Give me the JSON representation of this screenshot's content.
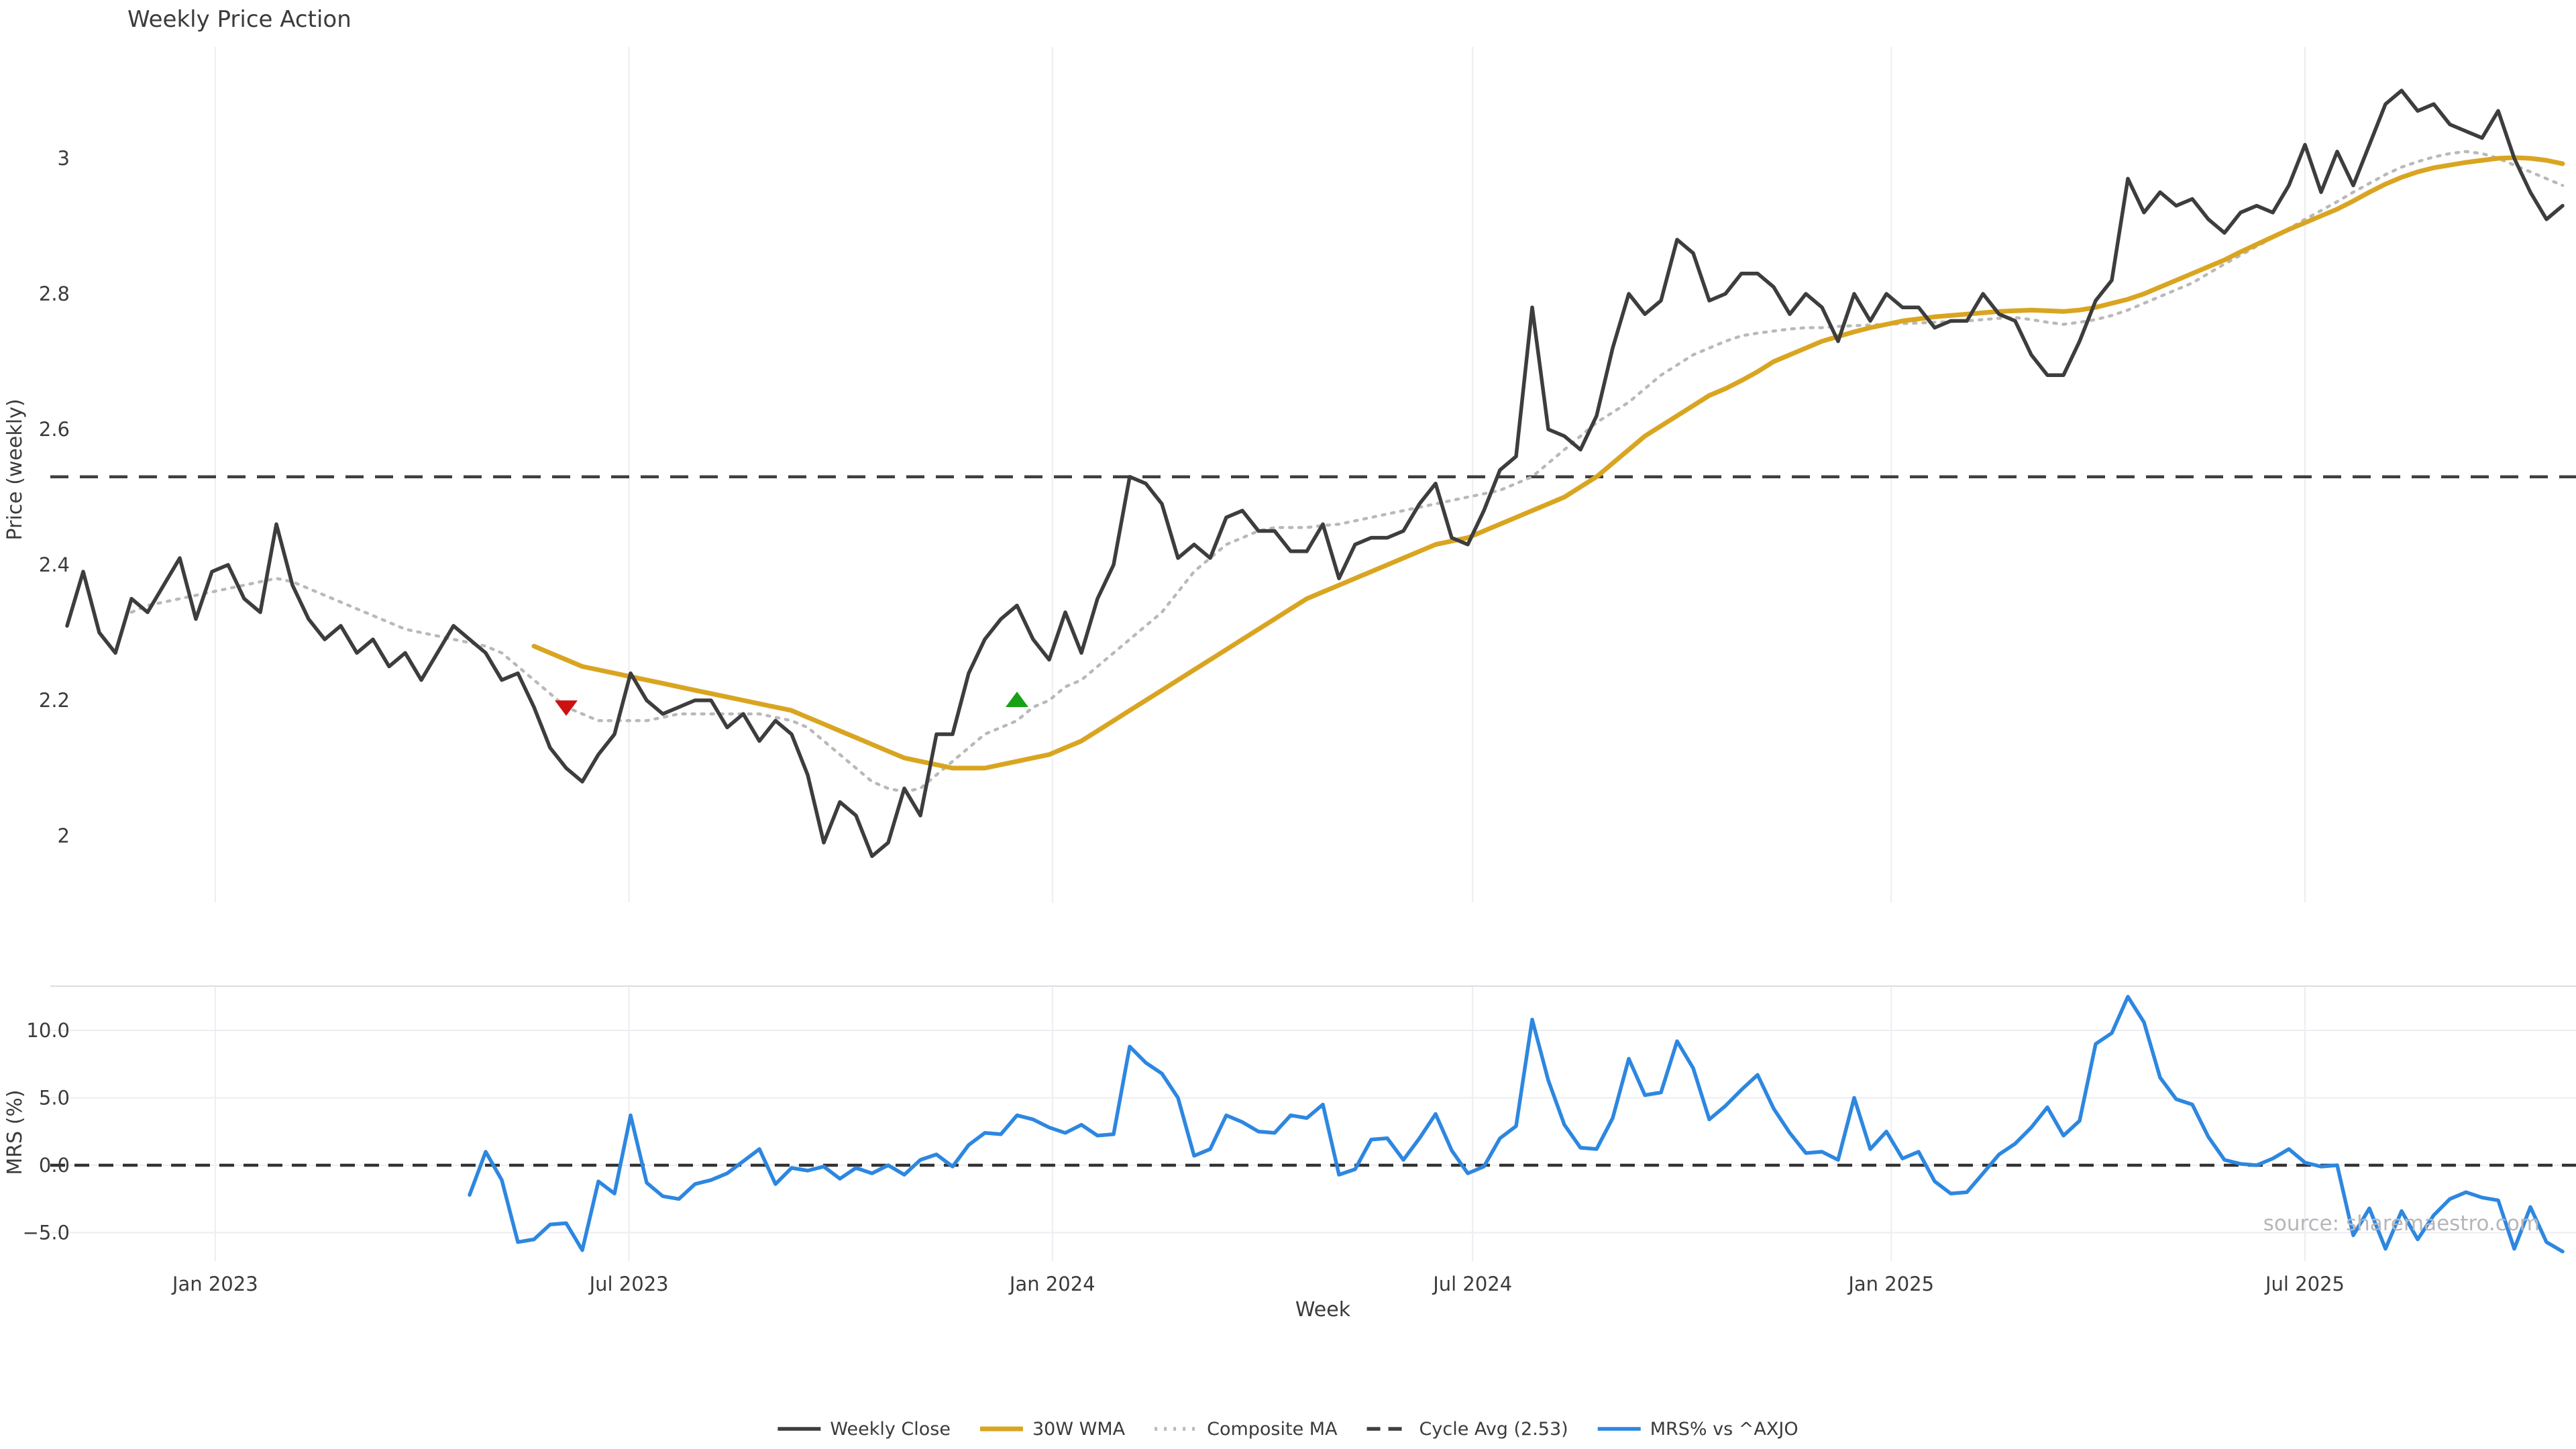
{
  "title": "Weekly Price Action",
  "source": "source: sharemaestro.com",
  "axes": {
    "price_label": "Price (weekly)",
    "mrs_label": "MRS (%)",
    "x_label": "Week",
    "price_tick_labels": [
      "3",
      "2.8",
      "2.6",
      "2.4",
      "2.2",
      "2"
    ],
    "mrs_tick_labels": [
      "10.0",
      "5.0",
      "0.0",
      "−5.0"
    ],
    "x_tick_labels": [
      "Jan 2023",
      "Jul 2023",
      "Jan 2024",
      "Jul 2024",
      "Jan 2025",
      "Jul 2025"
    ]
  },
  "legend": [
    {
      "label": "Weekly Close",
      "color": "#3d3d3d",
      "style": "solid"
    },
    {
      "label": "30W WMA",
      "color": "#d9a521",
      "style": "solid"
    },
    {
      "label": "Composite MA",
      "color": "#b9b9b9",
      "style": "dotted"
    },
    {
      "label": "Cycle Avg (2.53)",
      "color": "#3f3f3f",
      "style": "dashed"
    },
    {
      "label": "MRS% vs ^AXJO",
      "color": "#2d87e0",
      "style": "solid"
    }
  ],
  "colors": {
    "weekly_close": "#3d3d3d",
    "wma": "#d9a521",
    "composite": "#b9b9b9",
    "cycle_avg": "#3f3f3f",
    "mrs": "#2d87e0",
    "sell_marker": "#cc1111",
    "buy_marker": "#16a116",
    "grid": "#ededf2"
  },
  "chart_data": {
    "type": "line",
    "title": "Weekly Price Action",
    "xlabel": "Week",
    "x_tick_labels": [
      "Jan 2023",
      "Jul 2023",
      "Jan 2024",
      "Jul 2024",
      "Jan 2025",
      "Jul 2025"
    ],
    "x_tick_weeks": [
      9.2,
      34.9,
      61.2,
      87.3,
      113.3,
      139.0
    ],
    "n_weeks": 156,
    "panels": [
      {
        "name": "price",
        "ylabel": "Price (weekly)",
        "ylim": [
          1.9,
          3.165
        ],
        "yticks": [
          2,
          2.2,
          2.4,
          2.6,
          2.8,
          3
        ],
        "grid": "vertical-only",
        "cycle_avg": 2.53,
        "series": [
          {
            "name": "Weekly Close",
            "style": "solid",
            "color": "#3d3d3d",
            "start_week": 0,
            "values": [
              2.31,
              2.39,
              2.3,
              2.27,
              2.35,
              2.33,
              2.37,
              2.41,
              2.32,
              2.39,
              2.4,
              2.35,
              2.33,
              2.46,
              2.37,
              2.32,
              2.29,
              2.31,
              2.27,
              2.29,
              2.25,
              2.27,
              2.23,
              2.27,
              2.31,
              2.29,
              2.27,
              2.23,
              2.24,
              2.19,
              2.13,
              2.1,
              2.08,
              2.12,
              2.15,
              2.24,
              2.2,
              2.18,
              2.19,
              2.2,
              2.2,
              2.16,
              2.18,
              2.14,
              2.17,
              2.15,
              2.09,
              1.99,
              2.05,
              2.03,
              1.97,
              1.99,
              2.07,
              2.03,
              2.15,
              2.15,
              2.24,
              2.29,
              2.32,
              2.34,
              2.29,
              2.26,
              2.33,
              2.27,
              2.35,
              2.4,
              2.53,
              2.52,
              2.49,
              2.41,
              2.43,
              2.41,
              2.47,
              2.48,
              2.45,
              2.45,
              2.42,
              2.42,
              2.46,
              2.38,
              2.43,
              2.44,
              2.44,
              2.45,
              2.49,
              2.52,
              2.44,
              2.43,
              2.48,
              2.54,
              2.56,
              2.78,
              2.6,
              2.59,
              2.57,
              2.62,
              2.72,
              2.8,
              2.77,
              2.79,
              2.88,
              2.86,
              2.79,
              2.8,
              2.83,
              2.83,
              2.81,
              2.77,
              2.8,
              2.78,
              2.73,
              2.8,
              2.76,
              2.8,
              2.78,
              2.78,
              2.75,
              2.76,
              2.76,
              2.8,
              2.77,
              2.76,
              2.71,
              2.68,
              2.68,
              2.73,
              2.79,
              2.82,
              2.97,
              2.92,
              2.95,
              2.93,
              2.94,
              2.91,
              2.89,
              2.92,
              2.93,
              2.92,
              2.96,
              3.02,
              2.95,
              3.01,
              2.96,
              3.02,
              3.08,
              3.1,
              3.07,
              3.08,
              3.05,
              3.04,
              3.03,
              3.07,
              3.0,
              2.95,
              2.91,
              2.93
            ]
          },
          {
            "name": "30W WMA",
            "style": "solid",
            "color": "#d9a521",
            "start_week": 29,
            "values": [
              2.28,
              2.27,
              2.26,
              2.25,
              2.245,
              2.24,
              2.235,
              2.23,
              2.225,
              2.22,
              2.215,
              2.21,
              2.205,
              2.2,
              2.195,
              2.19,
              2.185,
              2.175,
              2.165,
              2.155,
              2.145,
              2.135,
              2.125,
              2.115,
              2.11,
              2.105,
              2.1,
              2.1,
              2.1,
              2.105,
              2.11,
              2.115,
              2.12,
              2.13,
              2.14,
              2.155,
              2.17,
              2.185,
              2.2,
              2.215,
              2.23,
              2.245,
              2.26,
              2.275,
              2.29,
              2.305,
              2.32,
              2.335,
              2.35,
              2.36,
              2.37,
              2.38,
              2.39,
              2.4,
              2.41,
              2.42,
              2.43,
              2.435,
              2.44,
              2.45,
              2.46,
              2.47,
              2.48,
              2.49,
              2.5,
              2.515,
              2.53,
              2.55,
              2.57,
              2.59,
              2.605,
              2.62,
              2.635,
              2.65,
              2.66,
              2.672,
              2.685,
              2.7,
              2.71,
              2.72,
              2.73,
              2.737,
              2.744,
              2.75,
              2.755,
              2.76,
              2.763,
              2.766,
              2.768,
              2.77,
              2.772,
              2.774,
              2.775,
              2.776,
              2.775,
              2.774,
              2.776,
              2.78,
              2.786,
              2.792,
              2.8,
              2.81,
              2.82,
              2.83,
              2.84,
              2.85,
              2.862,
              2.873,
              2.884,
              2.895,
              2.905,
              2.915,
              2.925,
              2.937,
              2.95,
              2.962,
              2.972,
              2.98,
              2.986,
              2.99,
              2.994,
              2.997,
              3.0,
              3.001,
              3.0,
              2.997,
              2.992
            ]
          },
          {
            "name": "Composite MA",
            "style": "dotted",
            "color": "#b9b9b9",
            "start_week": 4,
            "values": [
              2.33,
              2.34,
              2.345,
              2.35,
              2.355,
              2.36,
              2.365,
              2.37,
              2.375,
              2.38,
              2.375,
              2.365,
              2.355,
              2.345,
              2.335,
              2.325,
              2.315,
              2.305,
              2.3,
              2.295,
              2.29,
              2.285,
              2.28,
              2.27,
              2.25,
              2.23,
              2.21,
              2.19,
              2.18,
              2.17,
              2.17,
              2.17,
              2.17,
              2.175,
              2.18,
              2.18,
              2.18,
              2.18,
              2.18,
              2.18,
              2.175,
              2.17,
              2.16,
              2.14,
              2.12,
              2.1,
              2.08,
              2.07,
              2.065,
              2.07,
              2.09,
              2.11,
              2.13,
              2.15,
              2.16,
              2.17,
              2.19,
              2.2,
              2.22,
              2.23,
              2.25,
              2.27,
              2.29,
              2.31,
              2.33,
              2.36,
              2.39,
              2.41,
              2.43,
              2.44,
              2.45,
              2.455,
              2.455,
              2.455,
              2.458,
              2.46,
              2.465,
              2.47,
              2.475,
              2.48,
              2.485,
              2.49,
              2.495,
              2.5,
              2.505,
              2.51,
              2.52,
              2.53,
              2.55,
              2.57,
              2.59,
              2.61,
              2.625,
              2.64,
              2.66,
              2.68,
              2.695,
              2.71,
              2.72,
              2.73,
              2.738,
              2.742,
              2.745,
              2.748,
              2.75,
              2.75,
              2.752,
              2.753,
              2.754,
              2.755,
              2.756,
              2.757,
              2.758,
              2.759,
              2.76,
              2.762,
              2.764,
              2.765,
              2.762,
              2.758,
              2.755,
              2.758,
              2.762,
              2.768,
              2.776,
              2.786,
              2.796,
              2.806,
              2.816,
              2.83,
              2.844,
              2.857,
              2.87,
              2.883,
              2.896,
              2.91,
              2.923,
              2.936,
              2.95,
              2.963,
              2.976,
              2.987,
              2.995,
              3.002,
              3.007,
              3.01,
              3.007,
              3.0,
              2.99,
              2.98,
              2.97,
              2.96
            ]
          }
        ],
        "markers": [
          {
            "type": "sell",
            "shape": "triangle-down",
            "color": "#cc1111",
            "week": 31,
            "price": 2.19
          },
          {
            "type": "buy",
            "shape": "triangle-up",
            "color": "#16a116",
            "week": 59,
            "price": 2.2
          }
        ]
      },
      {
        "name": "mrs",
        "ylabel": "MRS (%)",
        "ylim": [
          -7.1,
          13.3
        ],
        "yticks": [
          -5,
          0,
          5,
          10
        ],
        "grid": "both",
        "zero_line_dashed": true,
        "series": [
          {
            "name": "MRS% vs ^AXJO",
            "style": "solid",
            "color": "#2d87e0",
            "start_week": 25,
            "values": [
              -2.2,
              1.0,
              -1.1,
              -5.7,
              -5.5,
              -4.4,
              -4.3,
              -6.3,
              -1.2,
              -2.1,
              3.7,
              -1.3,
              -2.3,
              -2.5,
              -1.4,
              -1.1,
              -0.6,
              0.3,
              1.2,
              -1.4,
              -0.2,
              -0.4,
              -0.1,
              -1.0,
              -0.2,
              -0.6,
              0.0,
              -0.7,
              0.4,
              0.8,
              -0.1,
              1.5,
              2.4,
              2.3,
              3.7,
              3.4,
              2.8,
              2.4,
              3.0,
              2.2,
              2.3,
              8.8,
              7.6,
              6.8,
              5.0,
              0.7,
              1.2,
              3.7,
              3.2,
              2.5,
              2.4,
              3.7,
              3.5,
              4.5,
              -0.7,
              -0.3,
              1.9,
              2.0,
              0.4,
              2.0,
              3.8,
              1.1,
              -0.6,
              -0.1,
              2.0,
              2.9,
              10.8,
              6.3,
              3.0,
              1.3,
              1.2,
              3.5,
              7.9,
              5.2,
              5.4,
              9.2,
              7.2,
              3.4,
              4.4,
              5.6,
              6.7,
              4.2,
              2.4,
              0.9,
              1.0,
              0.4,
              5.0,
              1.2,
              2.5,
              0.5,
              1.0,
              -1.2,
              -2.1,
              -2.0,
              -0.6,
              0.8,
              1.6,
              2.8,
              4.3,
              2.2,
              3.3,
              9.0,
              9.8,
              12.5,
              10.6,
              6.5,
              4.9,
              4.5,
              2.1,
              0.4,
              0.1,
              0.0,
              0.5,
              1.2,
              0.2,
              -0.1,
              0.0,
              -5.2,
              -3.2,
              -6.2,
              -3.4,
              -5.5,
              -3.7,
              -2.5,
              -2.0,
              -2.4,
              -2.6,
              -6.2,
              -3.1,
              -5.7,
              -6.4
            ]
          }
        ]
      }
    ]
  }
}
